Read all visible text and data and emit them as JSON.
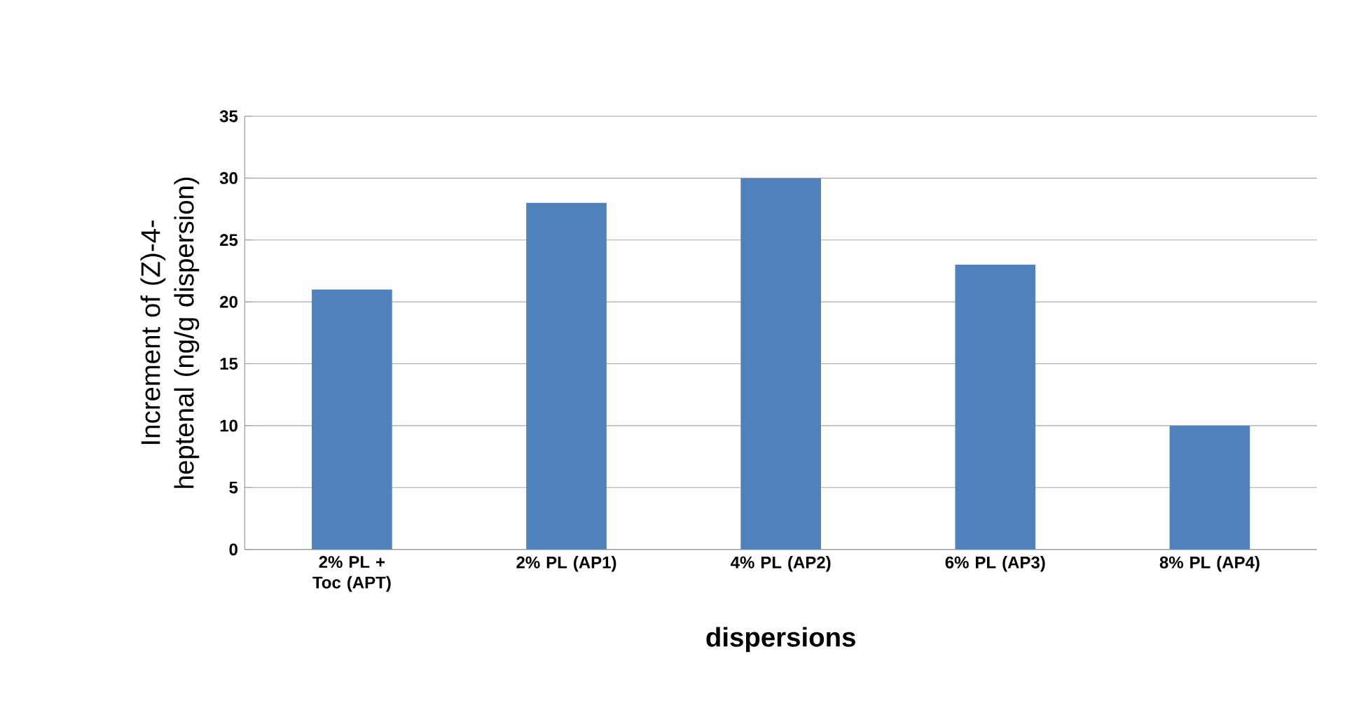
{
  "chart_data": {
    "type": "bar",
    "xlabel": "dispersions",
    "ylabel": "Increment of (Z)-4-heptenal (ng/g dispersion)",
    "categories": [
      "2% PL + Toc (APT)",
      "2% PL (AP1)",
      "4% PL (AP2)",
      "6% PL (AP3)",
      "8% PL (AP4)"
    ],
    "values": [
      21,
      28,
      30,
      23,
      10
    ],
    "color": "#4f81bd",
    "ylim": [
      0,
      35
    ],
    "yticks": [
      0,
      5,
      10,
      15,
      20,
      25,
      30,
      35
    ],
    "grid": "y"
  }
}
